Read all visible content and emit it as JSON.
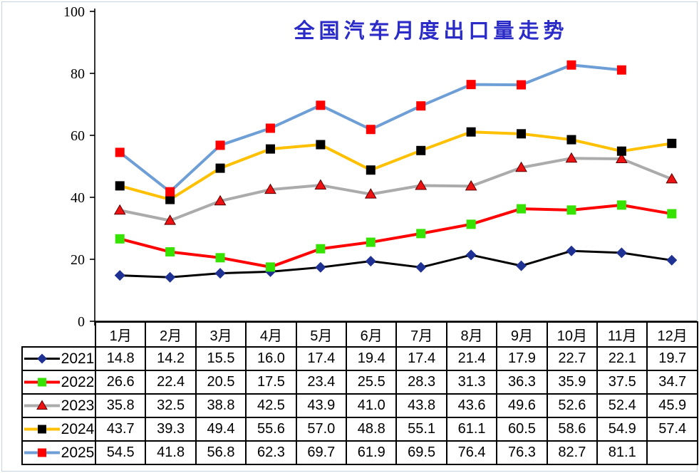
{
  "frame_color": "#c9d4e2",
  "chart_data": {
    "type": "line",
    "title": "全国汽车月度出口量走势",
    "title_color": "#2B2BC8",
    "categories": [
      "1月",
      "2月",
      "3月",
      "4月",
      "5月",
      "6月",
      "7月",
      "8月",
      "9月",
      "10月",
      "11月",
      "12月"
    ],
    "series": [
      {
        "name": "2021",
        "line_color": "#000000",
        "line_width": 3,
        "marker": "diamond",
        "marker_color": "#1F3193",
        "values": [
          14.8,
          14.2,
          15.5,
          16.0,
          17.4,
          19.4,
          17.4,
          21.4,
          17.9,
          22.7,
          22.1,
          19.7
        ]
      },
      {
        "name": "2022",
        "line_color": "#FF0000",
        "line_width": 4,
        "marker": "square",
        "marker_color": "#36E200",
        "values": [
          26.6,
          22.4,
          20.5,
          17.5,
          23.4,
          25.5,
          28.3,
          31.3,
          36.3,
          35.9,
          37.5,
          34.7
        ]
      },
      {
        "name": "2023",
        "line_color": "#ABABAB",
        "line_width": 4,
        "marker": "triangle",
        "marker_color": "#EE1111",
        "values": [
          35.8,
          32.5,
          38.8,
          42.5,
          43.9,
          41.0,
          43.8,
          43.6,
          49.6,
          52.6,
          52.4,
          45.9
        ]
      },
      {
        "name": "2024",
        "line_color": "#FFC000",
        "line_width": 4,
        "marker": "square",
        "marker_color": "#000000",
        "values": [
          43.7,
          39.3,
          49.4,
          55.6,
          57.0,
          48.8,
          55.1,
          61.1,
          60.5,
          58.6,
          54.9,
          57.4
        ]
      },
      {
        "name": "2025",
        "line_color": "#6D9ED6",
        "line_width": 4,
        "marker": "square",
        "marker_color": "#FF0000",
        "values": [
          54.5,
          41.8,
          56.8,
          62.3,
          69.7,
          61.9,
          69.5,
          76.4,
          76.3,
          82.7,
          81.1,
          null
        ]
      }
    ],
    "xlabel": "",
    "ylabel": "",
    "ylim": [
      0,
      100
    ],
    "yticks": [
      0,
      20,
      40,
      60,
      80,
      100
    ],
    "grid": false,
    "legend_position": "table-left",
    "value_format": "0.0"
  }
}
